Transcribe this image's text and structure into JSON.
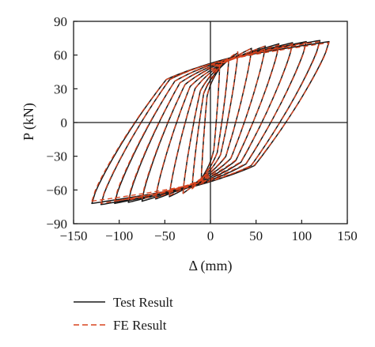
{
  "chart_data": {
    "type": "line",
    "title": "",
    "xlabel": "Δ (mm)",
    "ylabel": "P (kN)",
    "xlim": [
      -150,
      150
    ],
    "ylim": [
      -90,
      90
    ],
    "xticks": [
      -150,
      -100,
      -50,
      0,
      50,
      100,
      150
    ],
    "yticks": [
      -90,
      -60,
      -30,
      0,
      30,
      60,
      90
    ],
    "xtick_labels": [
      "−150",
      "−100",
      "−50",
      "0",
      "50",
      "100",
      "150"
    ],
    "ytick_labels": [
      "−90",
      "−60",
      "−30",
      "0",
      "30",
      "60",
      "90"
    ],
    "grid": false,
    "legend_position": "bottom",
    "series": [
      {
        "name": "Test Result",
        "color": "#1a1a1a",
        "style": "solid",
        "cycle_amplitudes_mm": [
          10,
          20,
          30,
          45,
          60,
          75,
          90,
          105,
          120,
          130
        ],
        "cycle_peak_kN": [
          48,
          56,
          62,
          66,
          68,
          70,
          71,
          72,
          73,
          72
        ],
        "neg_cycle_amplitudes_mm": [
          -10,
          -20,
          -30,
          -45,
          -60,
          -75,
          -90,
          -105,
          -120,
          -130
        ],
        "neg_cycle_peak_kN": [
          -50,
          -58,
          -63,
          -66,
          -68,
          -70,
          -71,
          -72,
          -73,
          -72
        ]
      },
      {
        "name": "FE Result",
        "color": "#d9431e",
        "style": "dashed",
        "cycle_amplitudes_mm": [
          10,
          20,
          30,
          45,
          60,
          75,
          90,
          105,
          120,
          130
        ],
        "cycle_peak_kN": [
          50,
          58,
          63,
          66,
          68,
          69,
          70,
          71,
          72,
          71
        ],
        "neg_cycle_amplitudes_mm": [
          -10,
          -20,
          -30,
          -45,
          -60,
          -75,
          -90,
          -105,
          -120,
          -130
        ],
        "neg_cycle_peak_kN": [
          -52,
          -59,
          -63,
          -65,
          -67,
          -68,
          -69,
          -70,
          -72,
          -70
        ]
      }
    ]
  }
}
